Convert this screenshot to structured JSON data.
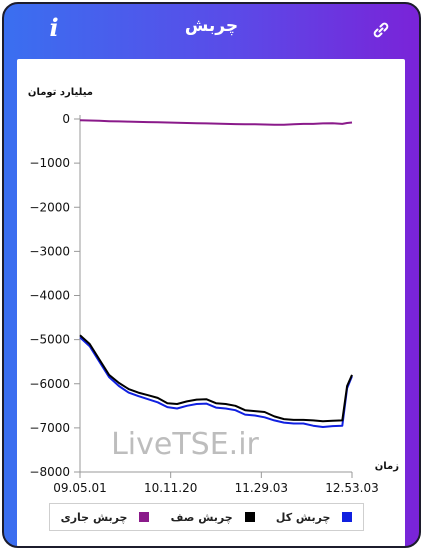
{
  "header": {
    "title": "چربش",
    "info_icon": "i"
  },
  "chart_data": {
    "type": "line",
    "ylabel": "میلیارد تومان",
    "xlabel": "زمان",
    "ylim": [
      -8000,
      0
    ],
    "yticks": [
      "0",
      "−1000",
      "−2000",
      "−3000",
      "−4000",
      "−5000",
      "−6000",
      "−7000",
      "−8000"
    ],
    "xticks": [
      "09.05.01",
      "10.11.20",
      "11.29.03",
      "12.53.03"
    ],
    "x": [
      0,
      10,
      20,
      30,
      40,
      50,
      60,
      70,
      80,
      90,
      100,
      110,
      120,
      130,
      140,
      150,
      160,
      170,
      180,
      190,
      200,
      210,
      220,
      230,
      240,
      250,
      260,
      270,
      275,
      280
    ],
    "series": [
      {
        "name": "چربش کل",
        "color": "#1020e0",
        "values": [
          -4950,
          -5150,
          -5500,
          -5850,
          -6050,
          -6200,
          -6280,
          -6350,
          -6420,
          -6530,
          -6560,
          -6500,
          -6460,
          -6450,
          -6540,
          -6560,
          -6600,
          -6700,
          -6720,
          -6760,
          -6830,
          -6880,
          -6900,
          -6900,
          -6950,
          -6980,
          -6960,
          -6950,
          -6100,
          -5830
        ]
      },
      {
        "name": "چربش صف",
        "color": "#000000",
        "values": [
          -4900,
          -5100,
          -5450,
          -5800,
          -5980,
          -6120,
          -6200,
          -6260,
          -6320,
          -6440,
          -6460,
          -6400,
          -6360,
          -6350,
          -6440,
          -6460,
          -6500,
          -6600,
          -6620,
          -6640,
          -6740,
          -6800,
          -6820,
          -6820,
          -6830,
          -6850,
          -6840,
          -6830,
          -6050,
          -5800
        ]
      },
      {
        "name": "چربش جاری",
        "color": "#8a1a8a",
        "values": [
          -30,
          -35,
          -40,
          -50,
          -55,
          -60,
          -65,
          -70,
          -75,
          -80,
          -85,
          -90,
          -95,
          -100,
          -105,
          -110,
          -115,
          -120,
          -120,
          -125,
          -130,
          -130,
          -120,
          -110,
          -110,
          -100,
          -95,
          -110,
          -90,
          -80
        ]
      }
    ],
    "watermark": "LiveTSE.ir"
  },
  "legend": {
    "items": [
      {
        "label": "چربش کل",
        "color": "#1020e0"
      },
      {
        "label": "چربش صف",
        "color": "#000000"
      },
      {
        "label": "چربش جاری",
        "color": "#8a1a8a"
      }
    ]
  }
}
